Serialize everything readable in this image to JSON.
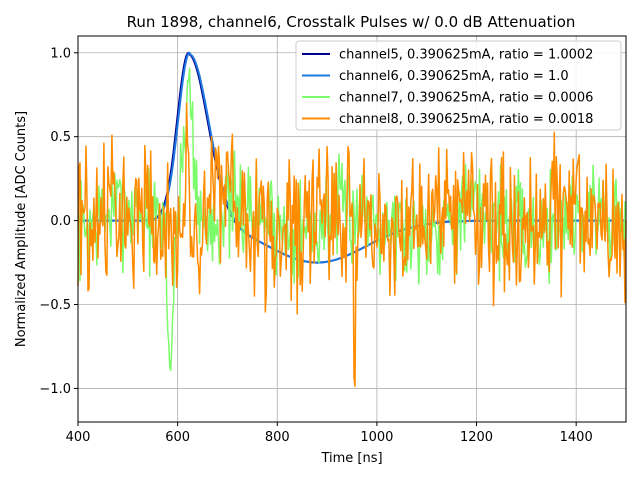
{
  "chart_data": {
    "type": "line",
    "title": "Run 1898, channel6, Crosstalk Pulses w/ 0.0 dB Attenuation",
    "xlabel": "Time [ns]",
    "ylabel": "Normalized Amplitude [ADC Counts]",
    "xlim": [
      400,
      1500
    ],
    "ylim": [
      -1.2,
      1.1
    ],
    "xticks": [
      400,
      600,
      800,
      1000,
      1200,
      1400
    ],
    "xtick_labels": [
      "400",
      "600",
      "800",
      "1000",
      "1200",
      "1400"
    ],
    "yticks": [
      -1.0,
      -0.5,
      0.0,
      0.5,
      1.0
    ],
    "ytick_labels": [
      "−1.0",
      "−0.5",
      "0.0",
      "0.5",
      "1.0"
    ],
    "grid": true,
    "legend_position": "top-right",
    "series": [
      {
        "name": "channel5, 0.390625mA, ratio = 1.0002",
        "color": "#00008b",
        "kind": "pulse",
        "peak_time": 622,
        "peak_value": 1.0,
        "undershoot_time": 880,
        "undershoot_value": -0.25
      },
      {
        "name": "channel6, 0.390625mA, ratio = 1.0",
        "color": "#1f77e0",
        "kind": "pulse",
        "peak_time": 624,
        "peak_value": 1.0,
        "undershoot_time": 880,
        "undershoot_value": -0.25
      },
      {
        "name": "channel7, 0.390625mA, ratio = 0.0006",
        "color": "#7cfc6a",
        "kind": "noise",
        "amplitude": 0.22,
        "seed": 7,
        "dip_time": 585,
        "dip_value": -0.86,
        "bump_time": 622,
        "bump_value": 0.98
      },
      {
        "name": "channel8, 0.390625mA, ratio = 0.0018",
        "color": "#ff8c00",
        "kind": "noise",
        "amplitude": 0.3,
        "seed": 8,
        "min_time": 955,
        "min_value": -1.09,
        "max_time": 620,
        "max_value": 0.98
      }
    ]
  }
}
